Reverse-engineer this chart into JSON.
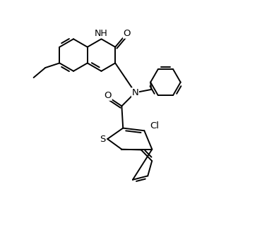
{
  "background_color": "#ffffff",
  "lw": 1.4,
  "fs": 8.5,
  "xlim": [
    -0.5,
    9.5
  ],
  "ylim": [
    0.5,
    9.5
  ]
}
